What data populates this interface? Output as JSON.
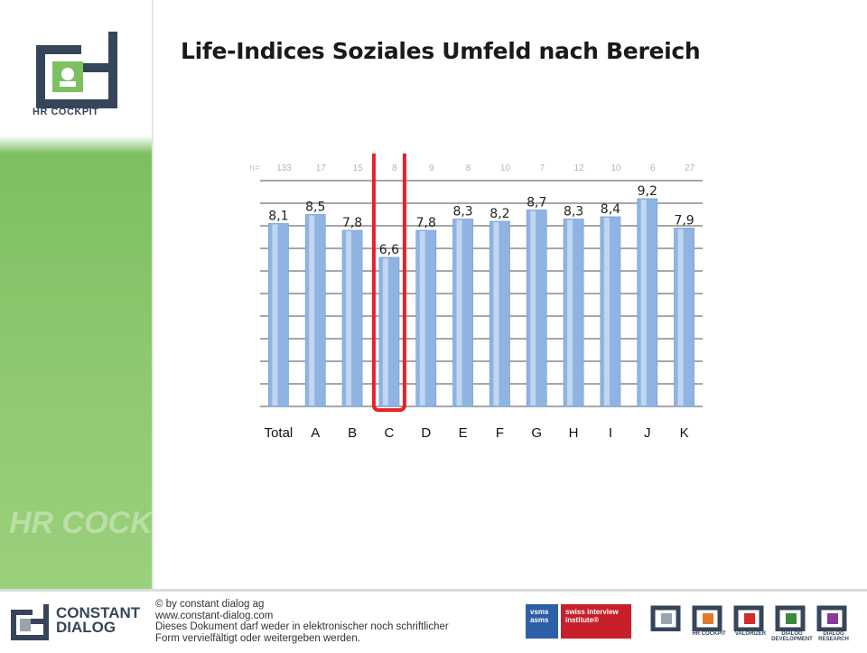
{
  "title": "Life-Indices Soziales Umfeld nach Bereich",
  "logo": {
    "caption": "HR COCKPIT",
    "icon": "hr-cockpit-logo"
  },
  "sidebar": {
    "watermark": "HR COCKPIT"
  },
  "chart_data": {
    "type": "bar",
    "categories": [
      "Total",
      "A",
      "B",
      "C",
      "D",
      "E",
      "F",
      "G",
      "H",
      "I",
      "J",
      "K"
    ],
    "values": [
      8.1,
      8.5,
      7.8,
      6.6,
      7.8,
      8.3,
      8.2,
      8.7,
      8.3,
      8.4,
      9.2,
      7.9
    ],
    "value_labels": [
      "8,1",
      "8,5",
      "7,8",
      "6,6",
      "7,8",
      "8,3",
      "8,2",
      "8,7",
      "8,3",
      "8,4",
      "9,2",
      "7,9"
    ],
    "n_prefix": "n=",
    "n_values": [
      "133",
      "17",
      "15",
      "8",
      "9",
      "8",
      "10",
      "7",
      "12",
      "10",
      "6",
      "27"
    ],
    "ylim": [
      0,
      10
    ],
    "grid": true,
    "highlight_index": 3,
    "bar_color": "#8fb4e3",
    "highlight_color": "#e8212a",
    "xlabel": "",
    "ylabel": ""
  },
  "footer": {
    "brand_line1": "CONSTANT",
    "brand_line2": "DIALOG",
    "copyright": "© by constant dialog ag",
    "website": "www.constant-dialog.com",
    "notice_line1": "Dieses Dokument darf weder in elektronischer noch schriftlicher",
    "notice_line2": "Form vervielfältigt oder weitergeben werden.",
    "badge_vsms": "vsms asms",
    "badge_swiss": "swiss interview institute®",
    "products": [
      "",
      "HR COCKPIT",
      "VALORIZER",
      "DIALOG DEVELOPMENT",
      "DIALOG RESEARCH"
    ],
    "product_colors": [
      "#9aa4ad",
      "#e07a2a",
      "#d42a2a",
      "#3a8a3a",
      "#8a3a9a"
    ]
  }
}
